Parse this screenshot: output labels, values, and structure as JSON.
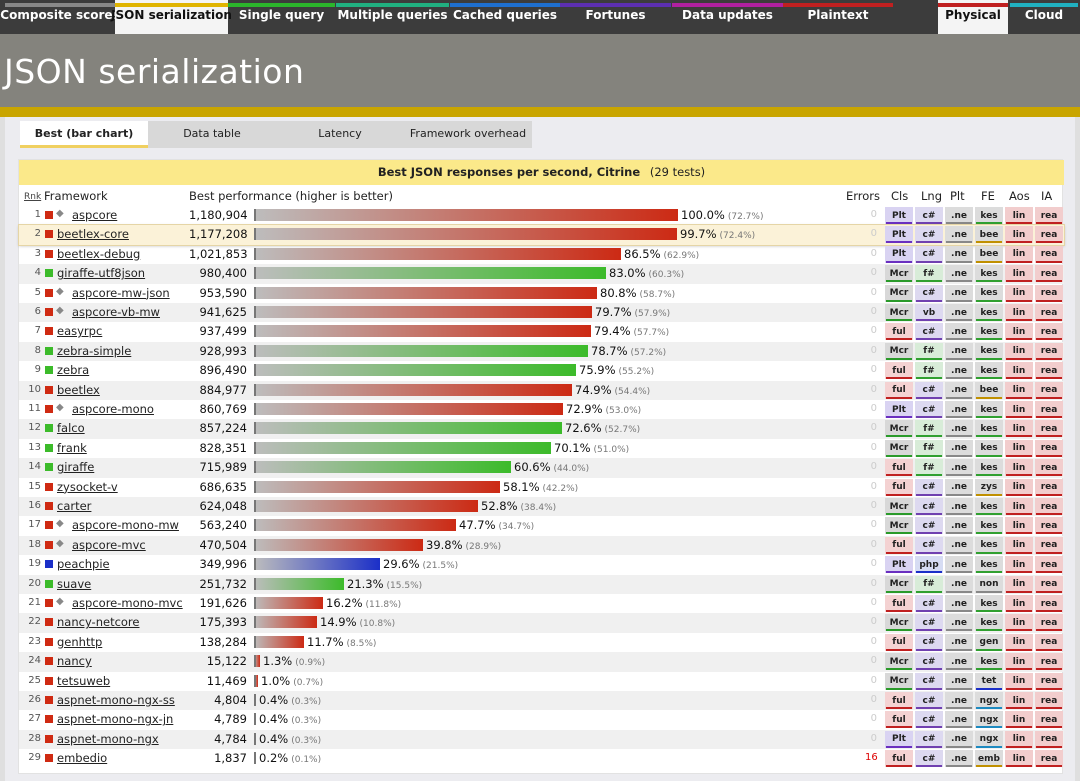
{
  "topnav": {
    "tabs": [
      {
        "label": "Composite scores",
        "color": "#888888"
      },
      {
        "label": "JSON serialization",
        "color": "#e0b400",
        "active": true
      },
      {
        "label": "Single query",
        "color": "#2bb52b"
      },
      {
        "label": "Multiple queries",
        "color": "#20b080"
      },
      {
        "label": "Cached queries",
        "color": "#1e6fcf"
      },
      {
        "label": "Fortunes",
        "color": "#5c2fb0"
      },
      {
        "label": "Data updates",
        "color": "#b020a0"
      },
      {
        "label": "Plaintext",
        "color": "#c02020"
      },
      {
        "label": "Physical",
        "color": "#c02020",
        "active": true
      },
      {
        "label": "Cloud",
        "color": "#20b0c0"
      }
    ]
  },
  "header": {
    "title": "JSON serialization"
  },
  "subtabs": [
    {
      "label": "Best (bar chart)",
      "active": true
    },
    {
      "label": "Data table"
    },
    {
      "label": "Latency"
    },
    {
      "label": "Framework overhead"
    }
  ],
  "panel": {
    "caption_main": "Best JSON responses per second, Citrine",
    "caption_tests": "(29 tests)",
    "headers": {
      "rnk": "Rnk",
      "framework": "Framework",
      "perf": "Best performance (higher is better)",
      "errors": "Errors",
      "cls": "Cls",
      "lng": "Lng",
      "plt": "Plt",
      "fe": "FE",
      "aos": "Aos",
      "ia": "IA"
    }
  },
  "colors": {
    "csharp": "#cf2a12",
    "fsharp": "#3cbb2a",
    "php": "#1b2fc8"
  },
  "chart_data": {
    "type": "bar",
    "title": "Best JSON responses per second, Citrine",
    "rows": [
      {
        "rank": "1",
        "name": "aspcore",
        "value": "1,180,904",
        "pct": 100.0,
        "pct_label": "100.0%",
        "rel": "(72.7%)",
        "lang": "cs",
        "icon": true,
        "errors": "0",
        "cls": "Plt",
        "lng": "c#",
        "plt": ".ne",
        "fe": "kes",
        "aos": "lin",
        "ia": "rea"
      },
      {
        "rank": "2",
        "name": "beetlex-core",
        "value": "1,177,208",
        "pct": 99.7,
        "pct_label": "99.7%",
        "rel": "(72.4%)",
        "lang": "cs",
        "errors": "0",
        "cls": "Plt",
        "lng": "c#",
        "plt": ".ne",
        "fe": "bee",
        "aos": "lin",
        "ia": "rea",
        "highlight": true
      },
      {
        "rank": "3",
        "name": "beetlex-debug",
        "value": "1,021,853",
        "pct": 86.5,
        "pct_label": "86.5%",
        "rel": "(62.9%)",
        "lang": "cs",
        "errors": "0",
        "cls": "Plt",
        "lng": "c#",
        "plt": ".ne",
        "fe": "bee",
        "aos": "lin",
        "ia": "rea"
      },
      {
        "rank": "4",
        "name": "giraffe-utf8json",
        "value": "980,400",
        "pct": 83.0,
        "pct_label": "83.0%",
        "rel": "(60.3%)",
        "lang": "fs",
        "errors": "0",
        "cls": "Mcr",
        "lng": "f#",
        "plt": ".ne",
        "fe": "kes",
        "aos": "lin",
        "ia": "rea"
      },
      {
        "rank": "5",
        "name": "aspcore-mw-json",
        "value": "953,590",
        "pct": 80.8,
        "pct_label": "80.8%",
        "rel": "(58.7%)",
        "lang": "cs",
        "icon": true,
        "errors": "0",
        "cls": "Mcr",
        "lng": "c#",
        "plt": ".ne",
        "fe": "kes",
        "aos": "lin",
        "ia": "rea"
      },
      {
        "rank": "6",
        "name": "aspcore-vb-mw",
        "value": "941,625",
        "pct": 79.7,
        "pct_label": "79.7%",
        "rel": "(57.9%)",
        "lang": "cs",
        "icon": true,
        "errors": "0",
        "cls": "Mcr",
        "lng": "vb",
        "plt": ".ne",
        "fe": "kes",
        "aos": "lin",
        "ia": "rea"
      },
      {
        "rank": "7",
        "name": "easyrpc",
        "value": "937,499",
        "pct": 79.4,
        "pct_label": "79.4%",
        "rel": "(57.7%)",
        "lang": "cs",
        "errors": "0",
        "cls": "ful",
        "lng": "c#",
        "plt": ".ne",
        "fe": "kes",
        "aos": "lin",
        "ia": "rea"
      },
      {
        "rank": "8",
        "name": "zebra-simple",
        "value": "928,993",
        "pct": 78.7,
        "pct_label": "78.7%",
        "rel": "(57.2%)",
        "lang": "fs",
        "errors": "0",
        "cls": "Mcr",
        "lng": "f#",
        "plt": ".ne",
        "fe": "kes",
        "aos": "lin",
        "ia": "rea"
      },
      {
        "rank": "9",
        "name": "zebra",
        "value": "896,490",
        "pct": 75.9,
        "pct_label": "75.9%",
        "rel": "(55.2%)",
        "lang": "fs",
        "errors": "0",
        "cls": "ful",
        "lng": "f#",
        "plt": ".ne",
        "fe": "kes",
        "aos": "lin",
        "ia": "rea"
      },
      {
        "rank": "10",
        "name": "beetlex",
        "value": "884,977",
        "pct": 74.9,
        "pct_label": "74.9%",
        "rel": "(54.4%)",
        "lang": "cs",
        "errors": "0",
        "cls": "ful",
        "lng": "c#",
        "plt": ".ne",
        "fe": "bee",
        "aos": "lin",
        "ia": "rea"
      },
      {
        "rank": "11",
        "name": "aspcore-mono",
        "value": "860,769",
        "pct": 72.9,
        "pct_label": "72.9%",
        "rel": "(53.0%)",
        "lang": "cs",
        "icon": true,
        "errors": "0",
        "cls": "Plt",
        "lng": "c#",
        "plt": ".ne",
        "fe": "kes",
        "aos": "lin",
        "ia": "rea"
      },
      {
        "rank": "12",
        "name": "falco",
        "value": "857,224",
        "pct": 72.6,
        "pct_label": "72.6%",
        "rel": "(52.7%)",
        "lang": "fs",
        "errors": "0",
        "cls": "Mcr",
        "lng": "f#",
        "plt": ".ne",
        "fe": "kes",
        "aos": "lin",
        "ia": "rea"
      },
      {
        "rank": "13",
        "name": "frank",
        "value": "828,351",
        "pct": 70.1,
        "pct_label": "70.1%",
        "rel": "(51.0%)",
        "lang": "fs",
        "errors": "0",
        "cls": "Mcr",
        "lng": "f#",
        "plt": ".ne",
        "fe": "kes",
        "aos": "lin",
        "ia": "rea"
      },
      {
        "rank": "14",
        "name": "giraffe",
        "value": "715,989",
        "pct": 60.6,
        "pct_label": "60.6%",
        "rel": "(44.0%)",
        "lang": "fs",
        "errors": "0",
        "cls": "ful",
        "lng": "f#",
        "plt": ".ne",
        "fe": "kes",
        "aos": "lin",
        "ia": "rea"
      },
      {
        "rank": "15",
        "name": "zysocket-v",
        "value": "686,635",
        "pct": 58.1,
        "pct_label": "58.1%",
        "rel": "(42.2%)",
        "lang": "cs",
        "errors": "0",
        "cls": "ful",
        "lng": "c#",
        "plt": ".ne",
        "fe": "zys",
        "aos": "lin",
        "ia": "rea"
      },
      {
        "rank": "16",
        "name": "carter",
        "value": "624,048",
        "pct": 52.8,
        "pct_label": "52.8%",
        "rel": "(38.4%)",
        "lang": "cs",
        "errors": "0",
        "cls": "Mcr",
        "lng": "c#",
        "plt": ".ne",
        "fe": "kes",
        "aos": "lin",
        "ia": "rea"
      },
      {
        "rank": "17",
        "name": "aspcore-mono-mw",
        "value": "563,240",
        "pct": 47.7,
        "pct_label": "47.7%",
        "rel": "(34.7%)",
        "lang": "cs",
        "icon": true,
        "errors": "0",
        "cls": "Mcr",
        "lng": "c#",
        "plt": ".ne",
        "fe": "kes",
        "aos": "lin",
        "ia": "rea"
      },
      {
        "rank": "18",
        "name": "aspcore-mvc",
        "value": "470,504",
        "pct": 39.8,
        "pct_label": "39.8%",
        "rel": "(28.9%)",
        "lang": "cs",
        "icon": true,
        "errors": "0",
        "cls": "ful",
        "lng": "c#",
        "plt": ".ne",
        "fe": "kes",
        "aos": "lin",
        "ia": "rea"
      },
      {
        "rank": "19",
        "name": "peachpie",
        "value": "349,996",
        "pct": 29.6,
        "pct_label": "29.6%",
        "rel": "(21.5%)",
        "lang": "php",
        "errors": "0",
        "cls": "Plt",
        "lng": "php",
        "plt": ".ne",
        "fe": "kes",
        "aos": "lin",
        "ia": "rea"
      },
      {
        "rank": "20",
        "name": "suave",
        "value": "251,732",
        "pct": 21.3,
        "pct_label": "21.3%",
        "rel": "(15.5%)",
        "lang": "fs",
        "errors": "0",
        "cls": "Mcr",
        "lng": "f#",
        "plt": ".ne",
        "fe": "non",
        "aos": "lin",
        "ia": "rea"
      },
      {
        "rank": "21",
        "name": "aspcore-mono-mvc",
        "value": "191,626",
        "pct": 16.2,
        "pct_label": "16.2%",
        "rel": "(11.8%)",
        "lang": "cs",
        "icon": true,
        "errors": "0",
        "cls": "ful",
        "lng": "c#",
        "plt": ".ne",
        "fe": "kes",
        "aos": "lin",
        "ia": "rea"
      },
      {
        "rank": "22",
        "name": "nancy-netcore",
        "value": "175,393",
        "pct": 14.9,
        "pct_label": "14.9%",
        "rel": "(10.8%)",
        "lang": "cs",
        "errors": "0",
        "cls": "Mcr",
        "lng": "c#",
        "plt": ".ne",
        "fe": "kes",
        "aos": "lin",
        "ia": "rea"
      },
      {
        "rank": "23",
        "name": "genhttp",
        "value": "138,284",
        "pct": 11.7,
        "pct_label": "11.7%",
        "rel": "(8.5%)",
        "lang": "cs",
        "errors": "0",
        "cls": "ful",
        "lng": "c#",
        "plt": ".ne",
        "fe": "gen",
        "aos": "lin",
        "ia": "rea"
      },
      {
        "rank": "24",
        "name": "nancy",
        "value": "15,122",
        "pct": 1.3,
        "pct_label": "1.3%",
        "rel": "(0.9%)",
        "lang": "cs",
        "errors": "0",
        "cls": "Mcr",
        "lng": "c#",
        "plt": ".ne",
        "fe": "kes",
        "aos": "lin",
        "ia": "rea"
      },
      {
        "rank": "25",
        "name": "tetsuweb",
        "value": "11,469",
        "pct": 1.0,
        "pct_label": "1.0%",
        "rel": "(0.7%)",
        "lang": "cs",
        "errors": "0",
        "cls": "Mcr",
        "lng": "c#",
        "plt": ".ne",
        "fe": "tet",
        "aos": "lin",
        "ia": "rea"
      },
      {
        "rank": "26",
        "name": "aspnet-mono-ngx-ss",
        "value": "4,804",
        "pct": 0.4,
        "pct_label": "0.4%",
        "rel": "(0.3%)",
        "lang": "cs",
        "errors": "0",
        "cls": "ful",
        "lng": "c#",
        "plt": ".ne",
        "fe": "ngx",
        "aos": "lin",
        "ia": "rea"
      },
      {
        "rank": "27",
        "name": "aspnet-mono-ngx-jn",
        "value": "4,789",
        "pct": 0.4,
        "pct_label": "0.4%",
        "rel": "(0.3%)",
        "lang": "cs",
        "errors": "0",
        "cls": "ful",
        "lng": "c#",
        "plt": ".ne",
        "fe": "ngx",
        "aos": "lin",
        "ia": "rea"
      },
      {
        "rank": "28",
        "name": "aspnet-mono-ngx",
        "value": "4,784",
        "pct": 0.4,
        "pct_label": "0.4%",
        "rel": "(0.3%)",
        "lang": "cs",
        "errors": "0",
        "cls": "Plt",
        "lng": "c#",
        "plt": ".ne",
        "fe": "ngx",
        "aos": "lin",
        "ia": "rea"
      },
      {
        "rank": "29",
        "name": "embedio",
        "value": "1,837",
        "pct": 0.2,
        "pct_label": "0.2%",
        "rel": "(0.1%)",
        "lang": "cs",
        "errors": "16",
        "cls": "ful",
        "lng": "c#",
        "plt": ".ne",
        "fe": "emb",
        "aos": "lin",
        "ia": "rea"
      }
    ]
  }
}
